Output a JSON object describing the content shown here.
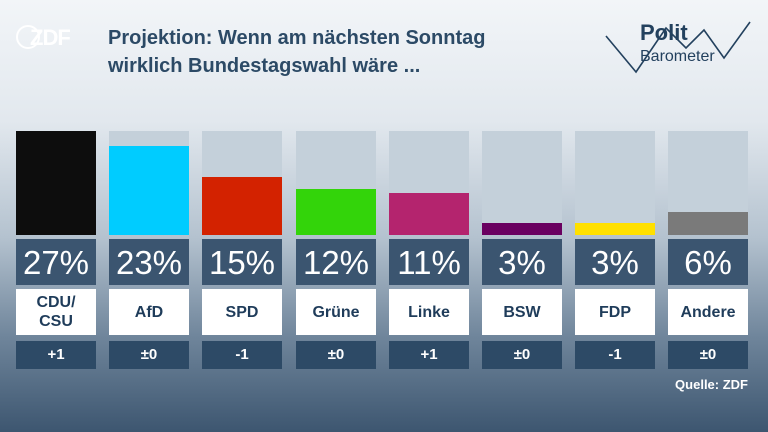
{
  "header": {
    "brand": "ZDF",
    "title_line1": "Projektion: Wenn am nächsten Sonntag",
    "title_line2": "wirklich Bundestagswahl wäre ...",
    "logo_line1": "Polit",
    "logo_line2": "Barometer"
  },
  "source": "Quelle: ZDF",
  "chart_data": {
    "type": "bar",
    "categories": [
      "CDU/\nCSU",
      "AfD",
      "SPD",
      "Grüne",
      "Linke",
      "BSW",
      "FDP",
      "Andere"
    ],
    "values": [
      27,
      23,
      15,
      12,
      11,
      3,
      3,
      6
    ],
    "value_labels": [
      "27%",
      "23%",
      "15%",
      "12%",
      "11%",
      "3%",
      "3%",
      "6%"
    ],
    "changes": [
      "+1",
      "±0",
      "-1",
      "±0",
      "+1",
      "±0",
      "-1",
      "±0"
    ],
    "colors": [
      "#0d0d0d",
      "#00ccff",
      "#d32200",
      "#33d40a",
      "#b4246e",
      "#6a0060",
      "#ffe000",
      "#7a7a7a"
    ],
    "ylim": [
      0,
      27
    ]
  }
}
